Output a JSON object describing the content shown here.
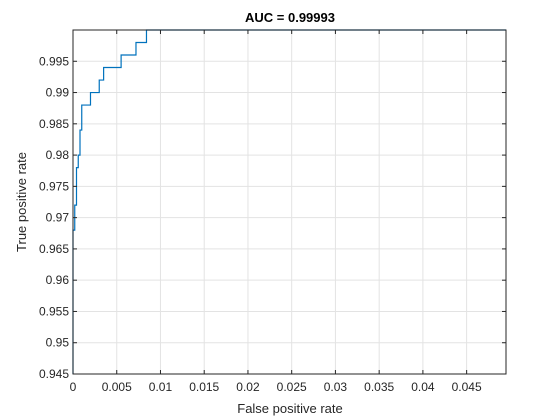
{
  "chart_data": {
    "type": "line",
    "title": "AUC  = 0.99993",
    "xlabel": "False positive rate",
    "ylabel": "True positive rate",
    "xlim": [
      0,
      0.0495
    ],
    "ylim": [
      0.945,
      1.0
    ],
    "grid": true,
    "xticks": [
      0,
      0.005,
      0.01,
      0.015,
      0.02,
      0.025,
      0.03,
      0.035,
      0.04,
      0.045
    ],
    "xtick_labels": [
      "0",
      "0.005",
      "0.01",
      "0.015",
      "0.02",
      "0.025",
      "0.03",
      "0.035",
      "0.04",
      "0.045"
    ],
    "yticks": [
      0.945,
      0.95,
      0.955,
      0.96,
      0.965,
      0.97,
      0.975,
      0.98,
      0.985,
      0.99,
      0.995
    ],
    "ytick_labels": [
      "0.945",
      "0.95",
      "0.955",
      "0.96",
      "0.965",
      "0.97",
      "0.975",
      "0.98",
      "0.985",
      "0.99",
      "0.995"
    ],
    "series": [
      {
        "color": "#0072bd",
        "x": [
          0,
          0,
          0.0002,
          0.0002,
          0.0004,
          0.0004,
          0.0006,
          0.0006,
          0.0008,
          0.0008,
          0.001,
          0.001,
          0.002,
          0.002,
          0.003,
          0.003,
          0.0035,
          0.0035,
          0.0055,
          0.0055,
          0.0072,
          0.0072,
          0.0084,
          0.0084,
          0.0495
        ],
        "y": [
          0.945,
          0.968,
          0.968,
          0.972,
          0.972,
          0.978,
          0.978,
          0.98,
          0.98,
          0.984,
          0.984,
          0.988,
          0.988,
          0.99,
          0.99,
          0.992,
          0.992,
          0.994,
          0.994,
          0.996,
          0.996,
          0.998,
          0.998,
          1.0,
          1.0
        ]
      }
    ]
  }
}
